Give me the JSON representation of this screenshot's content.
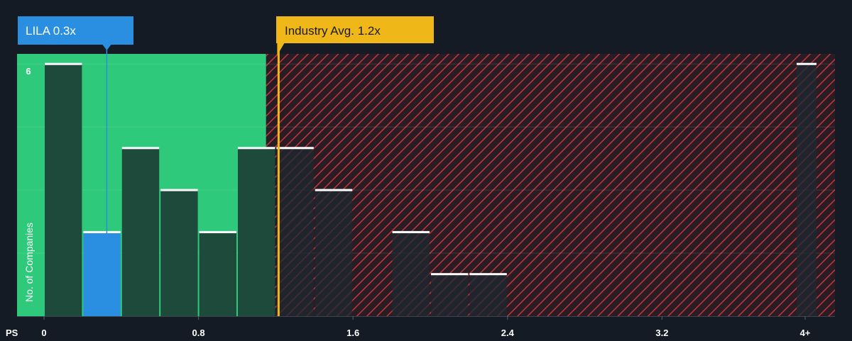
{
  "chart_data": {
    "type": "bar",
    "xlabel": "PS",
    "ylabel": "No. of Companies",
    "x_ticks": [
      {
        "value": 0,
        "label": "0"
      },
      {
        "value": 0.8,
        "label": "0.8"
      },
      {
        "value": 1.6,
        "label": "1.6"
      },
      {
        "value": 2.4,
        "label": "2.4"
      },
      {
        "value": 3.2,
        "label": "3.2"
      },
      {
        "value": 4.0,
        "label": "4+"
      }
    ],
    "y_ticks": [
      {
        "value": 6,
        "label": "6"
      }
    ],
    "ylim": [
      0,
      6
    ],
    "bin_width": 0.2,
    "bins": [
      {
        "x": 0.0,
        "count": 6
      },
      {
        "x": 0.2,
        "count": 2,
        "highlight": true
      },
      {
        "x": 0.4,
        "count": 4
      },
      {
        "x": 0.6,
        "count": 3
      },
      {
        "x": 0.8,
        "count": 2
      },
      {
        "x": 1.0,
        "count": 4
      },
      {
        "x": 1.2,
        "count": 4
      },
      {
        "x": 1.4,
        "count": 3
      },
      {
        "x": 1.8,
        "count": 2
      },
      {
        "x": 2.0,
        "count": 1
      },
      {
        "x": 2.2,
        "count": 1
      },
      {
        "x": 4.0,
        "count": 6
      }
    ],
    "fair_zone_end": 1.15,
    "company": {
      "label": "LILA 0.3x",
      "value": 0.325
    },
    "industry": {
      "label": "Industry Avg. 1.2x",
      "value": 1.2
    }
  },
  "colors": {
    "background": "#151b24",
    "fair": "#2ec97a",
    "expensive": "#c0383b",
    "bar": "#1e4a3c",
    "highlight": "#2a8fe0",
    "industry": "#f0b719",
    "bar_top": "#ffffff"
  }
}
